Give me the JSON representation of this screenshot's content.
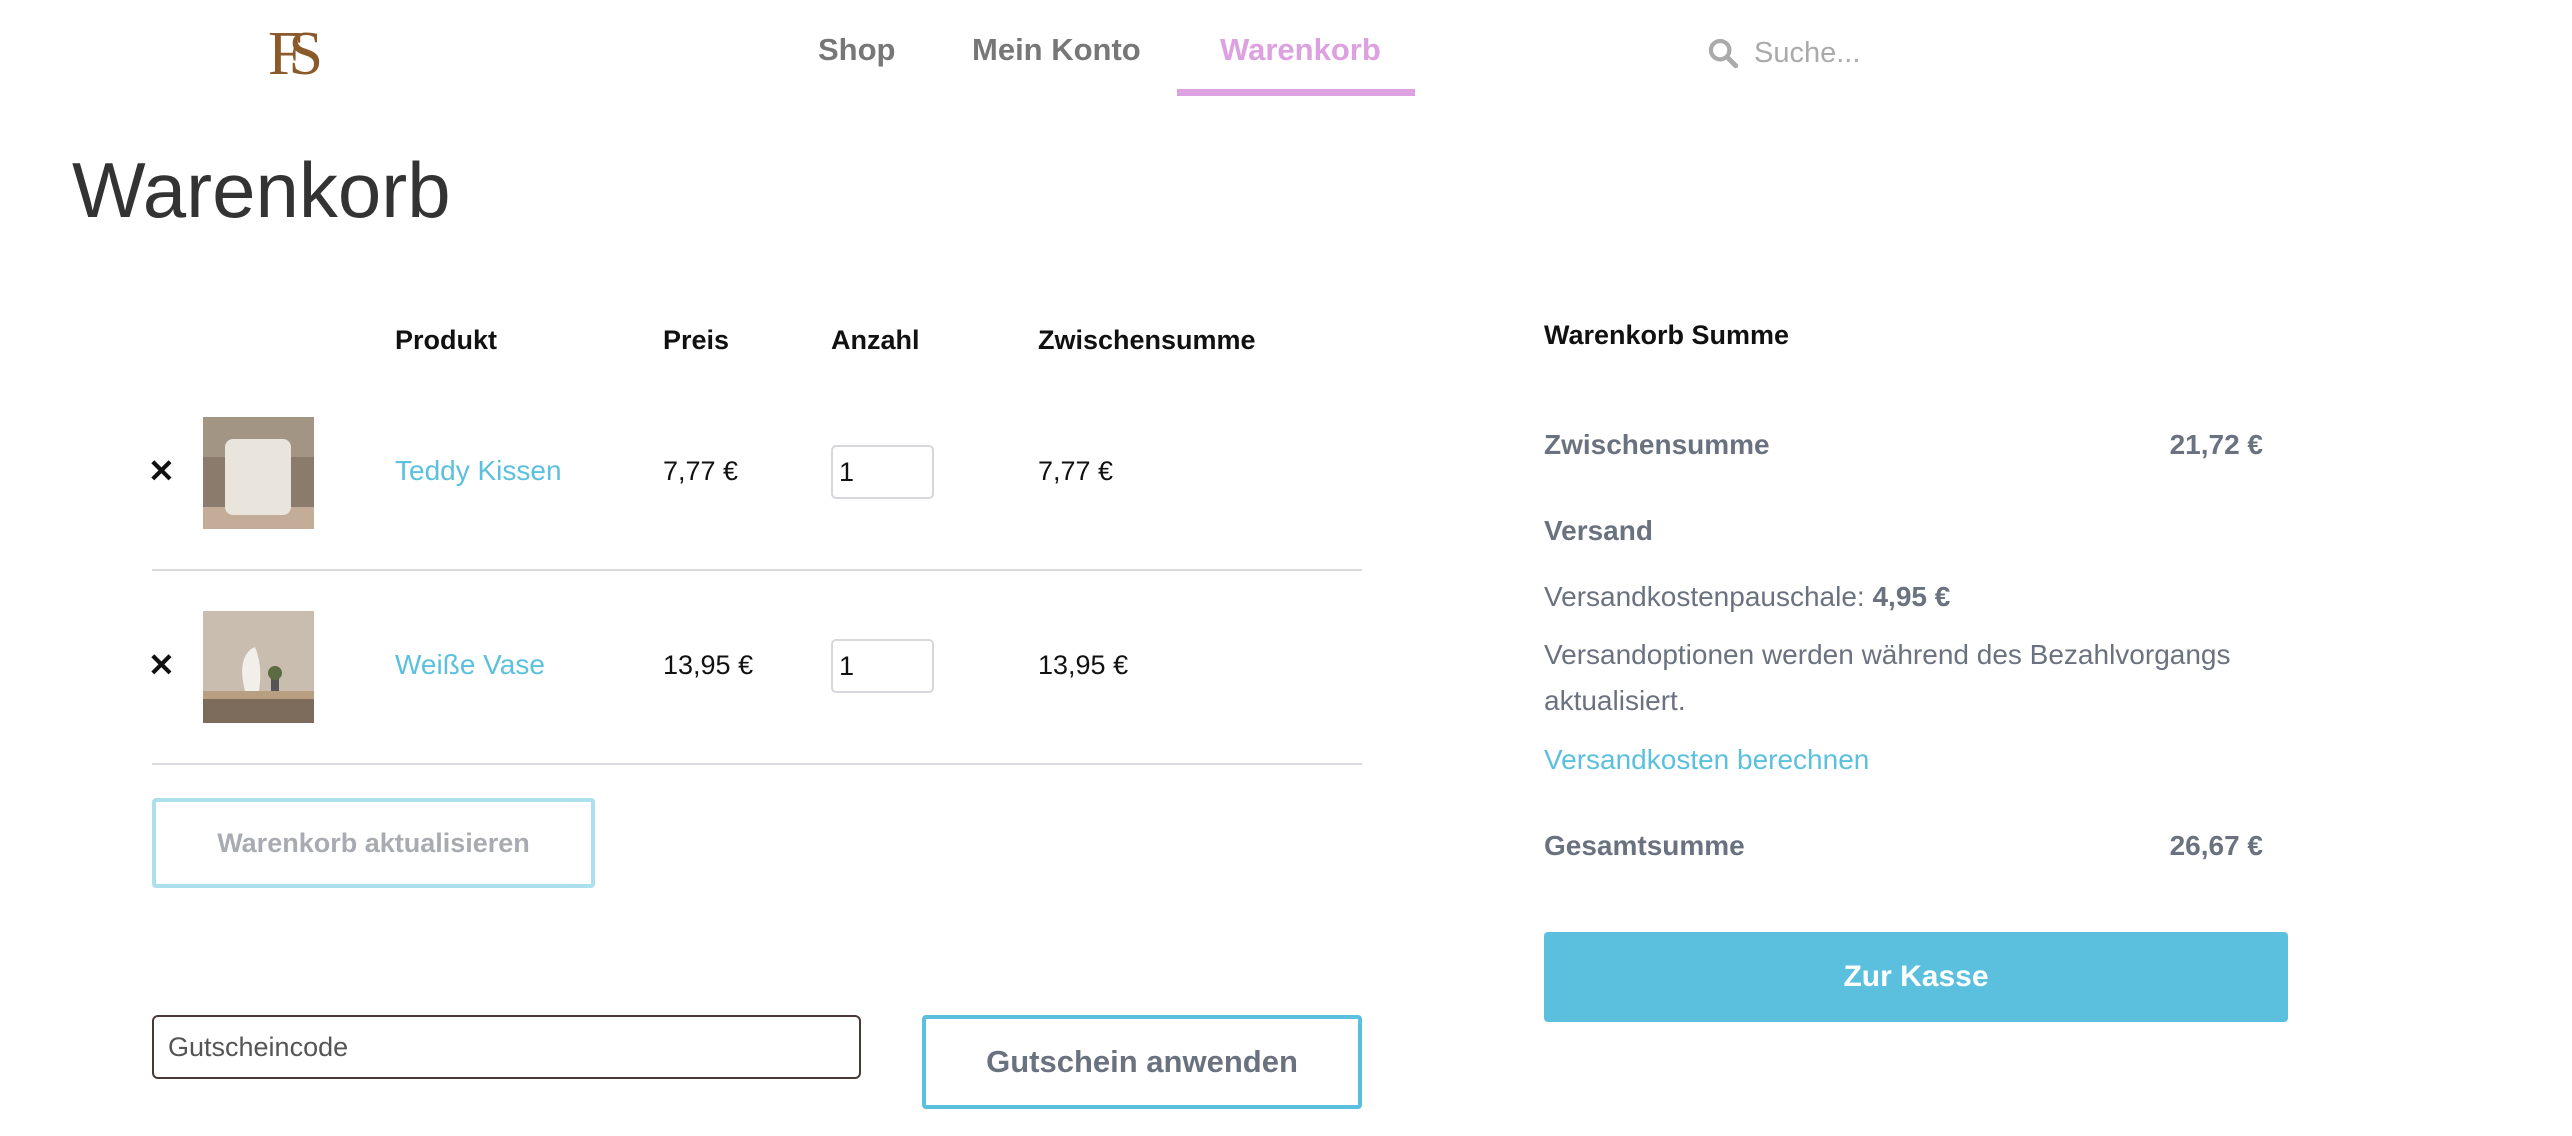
{
  "header": {
    "logo_text": "FS",
    "nav": [
      {
        "label": "Shop",
        "active": false
      },
      {
        "label": "Mein Konto",
        "active": false
      },
      {
        "label": "Warenkorb",
        "active": true
      }
    ],
    "search": {
      "placeholder": "Suche...",
      "icon": "search-icon"
    }
  },
  "page_title": "Warenkorb",
  "cart": {
    "columns": [
      "Produkt",
      "Preis",
      "Anzahl",
      "Zwischensumme"
    ],
    "items": [
      {
        "name": "Teddy Kissen",
        "price": "7,77 €",
        "quantity": "1",
        "subtotal": "7,77 €",
        "remove_icon": "close-icon"
      },
      {
        "name": "Weiße Vase",
        "price": "13,95 €",
        "quantity": "1",
        "subtotal": "13,95 €",
        "remove_icon": "close-icon"
      }
    ],
    "remove_symbol": "✕",
    "update_button": "Warenkorb aktualisieren",
    "coupon": {
      "placeholder": "Gutscheincode",
      "apply_button": "Gutschein anwenden"
    }
  },
  "totals": {
    "title": "Warenkorb Summe",
    "subtotal_label": "Zwischensumme",
    "subtotal_value": "21,72 €",
    "shipping_label": "Versand",
    "shipping_flat_label": "Versandkostenpauschale:",
    "shipping_flat_value": "4,95 €",
    "shipping_note_line1": "Versandoptionen werden während des Bezahlvorgangs",
    "shipping_note_line2": "aktualisiert.",
    "shipping_calc_link": "Versandkosten berechnen",
    "total_label": "Gesamtsumme",
    "total_value": "26,67 €",
    "checkout_button": "Zur Kasse"
  },
  "colors": {
    "accent": "#dda0e0",
    "link": "#5bc0de",
    "text": "#6a7280",
    "logo": "#8a5a2b"
  }
}
